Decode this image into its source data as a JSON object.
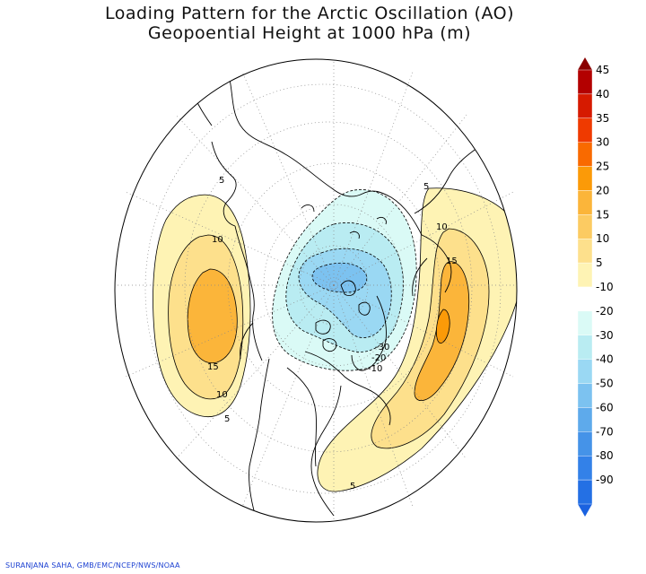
{
  "title": {
    "line1": "Loading Pattern for the Arctic Oscillation (AO)",
    "line2": "Geopoential Height at 1000 hPa (m)"
  },
  "credit": "SURANJANA SAHA, GMB/EMC/NCEP/NWS/NOAA",
  "colorbar": {
    "levels": [
      {
        "label": "45",
        "color": "#b30000"
      },
      {
        "label": "40",
        "color": "#d61a00"
      },
      {
        "label": "35",
        "color": "#ef3a00"
      },
      {
        "label": "30",
        "color": "#f96a00"
      },
      {
        "label": "25",
        "color": "#fb9a08"
      },
      {
        "label": "20",
        "color": "#fbb53a"
      },
      {
        "label": "15",
        "color": "#fccb62"
      },
      {
        "label": "10",
        "color": "#fde08c"
      },
      {
        "label": "5",
        "color": "#fef3b4"
      },
      {
        "label": "-10",
        "color": "#ffffff"
      },
      {
        "label": "-20",
        "color": "#dafaf6"
      },
      {
        "label": "-30",
        "color": "#b9ecf2"
      },
      {
        "label": "-40",
        "color": "#9ad8f3"
      },
      {
        "label": "-50",
        "color": "#7cc2f0"
      },
      {
        "label": "-60",
        "color": "#5eaaeb"
      },
      {
        "label": "-70",
        "color": "#4593e8"
      },
      {
        "label": "-80",
        "color": "#3381e8"
      },
      {
        "label": "-90",
        "color": "#2470e4"
      }
    ],
    "top_cap_color": "#8a0000",
    "bottom_cap_color": "#1a62e0"
  },
  "contour_labels": {
    "pacific": [
      "5",
      "10",
      "15",
      "10",
      "5"
    ],
    "atlantic": [
      "5",
      "10",
      "15",
      "5"
    ],
    "arctic": [
      "-30",
      "-20",
      "-10"
    ]
  }
}
